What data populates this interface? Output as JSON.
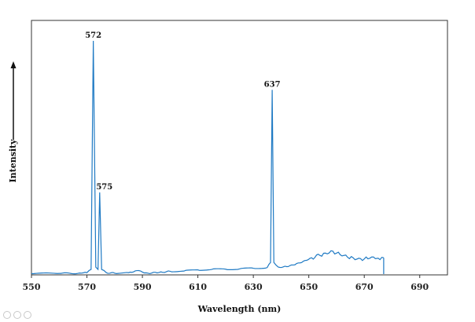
{
  "chart_data": {
    "type": "line",
    "xlabel": "Wavelength  (nm)",
    "ylabel": "Intensity",
    "xlim": [
      550,
      700
    ],
    "ylim": [
      0,
      1.0
    ],
    "x_ticks": [
      550,
      570,
      590,
      610,
      630,
      650,
      670,
      690
    ],
    "grid": false,
    "line_color": "#1f7ac4",
    "peaks": [
      {
        "label": "572",
        "x": 572.3,
        "y": 1.0
      },
      {
        "label": "575",
        "x": 574.6,
        "y": 0.35
      },
      {
        "label": "637",
        "x": 636.8,
        "y": 0.79
      }
    ],
    "series": [
      {
        "x": [
          550,
          560,
          568,
          570,
          571.5,
          572.3,
          573.2,
          574.0,
          574.6,
          575.3,
          577,
          580,
          585,
          588,
          592,
          596,
          600,
          605,
          610,
          615,
          620,
          625,
          630,
          635,
          636.2,
          636.8,
          637.4,
          639,
          642,
          645,
          648,
          651,
          654,
          656,
          658,
          660,
          662,
          664,
          666,
          668,
          670,
          672,
          674,
          675,
          677
        ],
        "y": [
          0.002,
          0.003,
          0.004,
          0.006,
          0.02,
          1.0,
          0.03,
          0.02,
          0.35,
          0.02,
          0.006,
          0.004,
          0.006,
          0.015,
          0.004,
          0.007,
          0.012,
          0.013,
          0.018,
          0.02,
          0.021,
          0.022,
          0.025,
          0.028,
          0.05,
          0.79,
          0.05,
          0.03,
          0.032,
          0.04,
          0.055,
          0.07,
          0.08,
          0.09,
          0.1,
          0.09,
          0.078,
          0.072,
          0.07,
          0.068,
          0.065,
          0.068,
          0.066,
          0.068,
          0.07
        ]
      }
    ]
  }
}
